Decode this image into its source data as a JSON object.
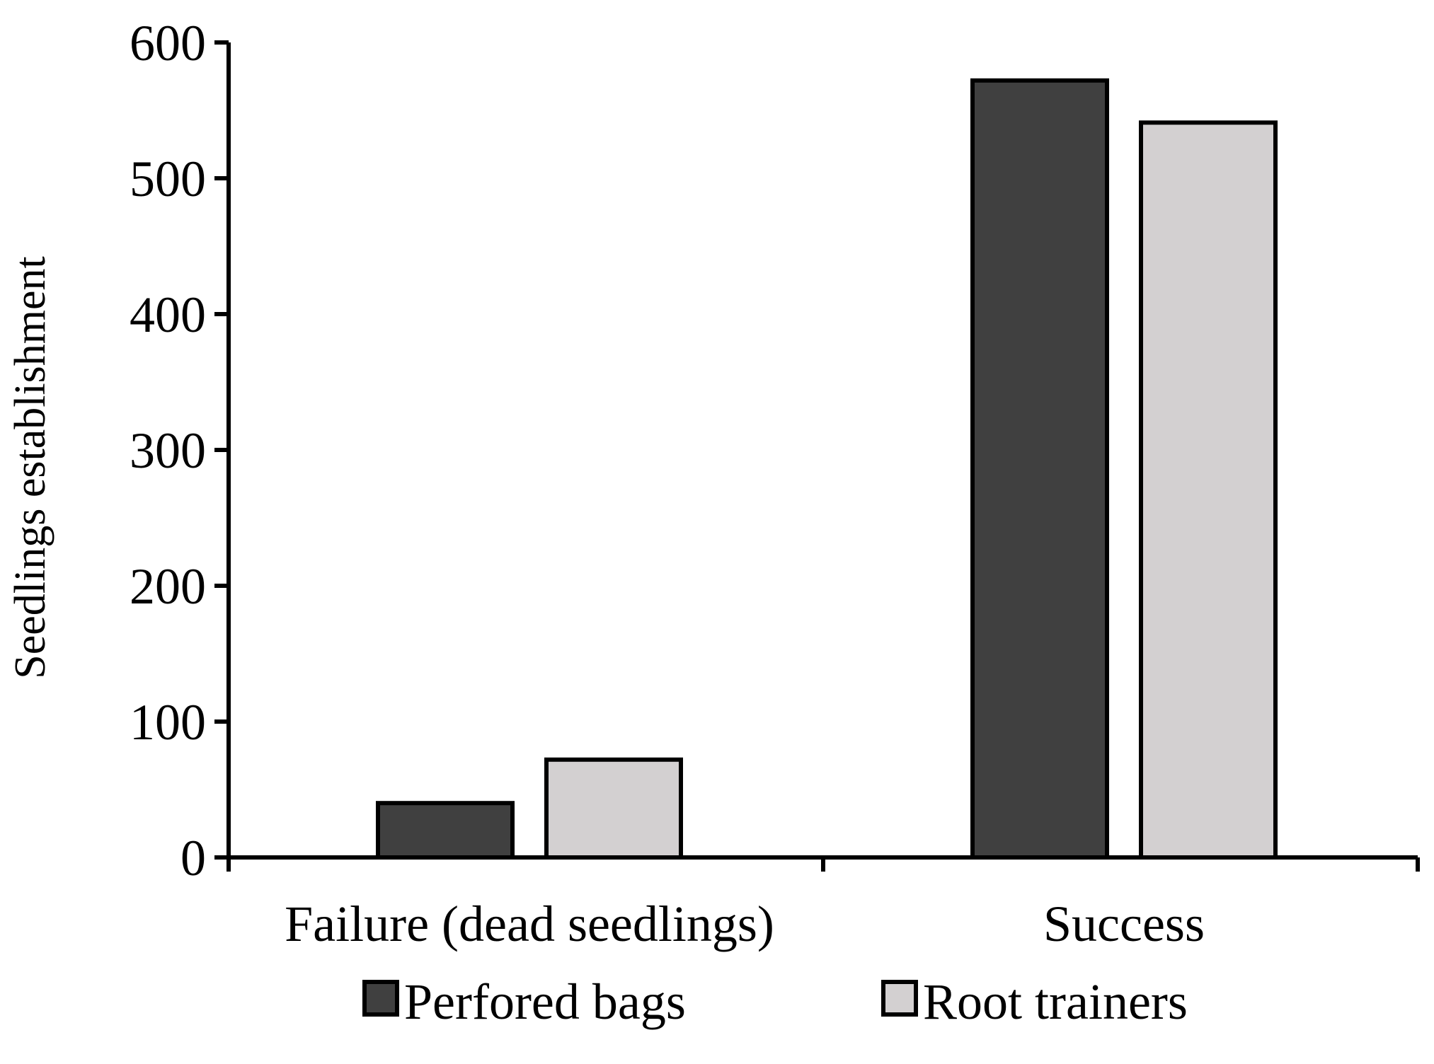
{
  "chart_data": {
    "type": "bar",
    "title": "",
    "xlabel": "",
    "ylabel": "Seedlings establishment",
    "categories": [
      "Failure (dead seedlings)",
      "Success"
    ],
    "series": [
      {
        "name": "Perfored bags",
        "values": [
          40,
          572
        ],
        "color": "#404040"
      },
      {
        "name": "Root trainers",
        "values": [
          72,
          541
        ],
        "color": "#d3d0d1"
      }
    ],
    "ylim": [
      0,
      600
    ],
    "yticks": [
      "0",
      "100",
      "200",
      "300",
      "400",
      "500",
      "600"
    ],
    "grid": false,
    "legend_position": "bottom"
  }
}
